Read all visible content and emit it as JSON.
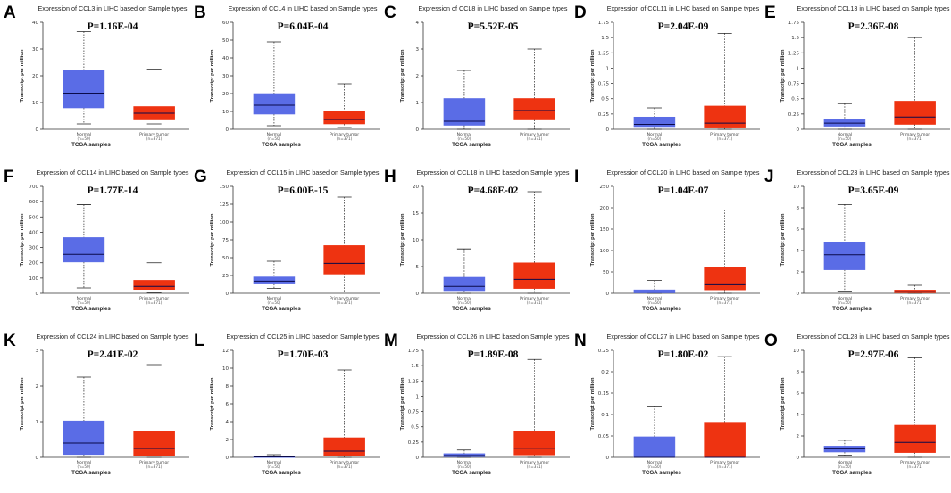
{
  "figure": {
    "colors": {
      "normal": "#5a6ce6",
      "tumor": "#ee3311",
      "median": "#0a0a4a",
      "axis": "#333333",
      "whisker": "#222222"
    }
  },
  "chart_data": [
    {
      "letter": "A",
      "type": "boxplot",
      "title": "Expression of CCL3 in LIHC based on Sample types",
      "pvalue": "P=1.16E-04",
      "ylabel": "Transcript per million",
      "xlabel": "TCGA samples",
      "ylim": [
        0,
        40
      ],
      "yticks": [
        0,
        10,
        20,
        30,
        40
      ],
      "ytick_labels": [
        "0",
        "10",
        "20",
        "30",
        "40"
      ],
      "categories": [
        {
          "name": "Normal",
          "n": "(n=50)"
        },
        {
          "name": "Primary tumor",
          "n": "(n=371)"
        }
      ],
      "boxes": [
        {
          "min": 2,
          "q1": 8,
          "median": 13.5,
          "q3": 22,
          "max": 36.5
        },
        {
          "min": 2,
          "q1": 3.5,
          "median": 6,
          "q3": 8.5,
          "max": 22.5
        }
      ]
    },
    {
      "letter": "B",
      "type": "boxplot",
      "title": "Expression of CCL4 in LIHC based on Sample types",
      "pvalue": "P=6.04E-04",
      "ylabel": "Transcript per million",
      "xlabel": "TCGA samples",
      "ylim": [
        0,
        60
      ],
      "yticks": [
        0,
        10,
        20,
        30,
        40,
        50,
        60
      ],
      "ytick_labels": [
        "0",
        "10",
        "20",
        "30",
        "40",
        "50",
        "60"
      ],
      "categories": [
        {
          "name": "Normal",
          "n": "(n=50)"
        },
        {
          "name": "Primary tumor",
          "n": "(n=371)"
        }
      ],
      "boxes": [
        {
          "min": 2,
          "q1": 8.5,
          "median": 13.5,
          "q3": 20,
          "max": 49
        },
        {
          "min": 1,
          "q1": 3,
          "median": 5.5,
          "q3": 10,
          "max": 25.5
        }
      ]
    },
    {
      "letter": "C",
      "type": "boxplot",
      "title": "Expression of CCL8 in LIHC based on Sample types",
      "pvalue": "P=5.52E-05",
      "ylabel": "Transcript per million",
      "xlabel": "TCGA samples",
      "ylim": [
        0,
        4
      ],
      "yticks": [
        0,
        1,
        2,
        3,
        4
      ],
      "ytick_labels": [
        "0",
        "1",
        "2",
        "3",
        "4"
      ],
      "categories": [
        {
          "name": "Normal",
          "n": "(n=50)"
        },
        {
          "name": "Primary tumor",
          "n": "(n=371)"
        }
      ],
      "boxes": [
        {
          "min": 0,
          "q1": 0.15,
          "median": 0.3,
          "q3": 1.15,
          "max": 2.2
        },
        {
          "min": 0,
          "q1": 0.35,
          "median": 0.7,
          "q3": 1.15,
          "max": 3
        }
      ]
    },
    {
      "letter": "D",
      "type": "boxplot",
      "title": "Expression of CCL11 in LIHC based on Sample types",
      "pvalue": "P=2.04E-09",
      "ylabel": "Transcript per million",
      "xlabel": "TCGA samples",
      "ylim": [
        0,
        1.75
      ],
      "yticks": [
        0,
        0.25,
        0.5,
        0.75,
        1,
        1.25,
        1.5,
        1.75
      ],
      "ytick_labels": [
        "0",
        "0.25",
        "0.5",
        "0.75",
        "1",
        "1.25",
        "1.5",
        "1.75"
      ],
      "categories": [
        {
          "name": "Normal",
          "n": "(n=50)"
        },
        {
          "name": "Primary tumor",
          "n": "(n=371)"
        }
      ],
      "boxes": [
        {
          "min": 0,
          "q1": 0.03,
          "median": 0.08,
          "q3": 0.2,
          "max": 0.35
        },
        {
          "min": 0,
          "q1": 0.02,
          "median": 0.1,
          "q3": 0.38,
          "max": 1.57
        }
      ]
    },
    {
      "letter": "E",
      "type": "boxplot",
      "title": "Expression of CCL13 in LIHC based on Sample types",
      "pvalue": "P=2.36E-08",
      "ylabel": "Transcript per million",
      "xlabel": "TCGA samples",
      "ylim": [
        0,
        1.75
      ],
      "yticks": [
        0,
        0.25,
        0.5,
        0.75,
        1,
        1.25,
        1.5,
        1.75
      ],
      "ytick_labels": [
        "0",
        "0.25",
        "0.5",
        "0.75",
        "1",
        "1.25",
        "1.5",
        "1.75"
      ],
      "categories": [
        {
          "name": "Normal",
          "n": "(n=50)"
        },
        {
          "name": "Primary tumor",
          "n": "(n=371)"
        }
      ],
      "boxes": [
        {
          "min": 0,
          "q1": 0.05,
          "median": 0.1,
          "q3": 0.17,
          "max": 0.42
        },
        {
          "min": 0,
          "q1": 0.08,
          "median": 0.2,
          "q3": 0.46,
          "max": 1.5
        }
      ]
    },
    {
      "letter": "F",
      "type": "boxplot",
      "title": "Expression of CCL14 in LIHC based on Sample types",
      "pvalue": "P=1.77E-14",
      "ylabel": "Transcript per million",
      "xlabel": "TCGA samples",
      "ylim": [
        0,
        700
      ],
      "yticks": [
        0,
        100,
        200,
        300,
        400,
        500,
        600,
        700
      ],
      "ytick_labels": [
        "0",
        "100",
        "200",
        "300",
        "400",
        "500",
        "600",
        "700"
      ],
      "categories": [
        {
          "name": "Normal",
          "n": "(n=50)"
        },
        {
          "name": "Primary tumor",
          "n": "(n=371)"
        }
      ],
      "boxes": [
        {
          "min": 35,
          "q1": 205,
          "median": 255,
          "q3": 365,
          "max": 580
        },
        {
          "min": 5,
          "q1": 25,
          "median": 45,
          "q3": 85,
          "max": 200
        }
      ]
    },
    {
      "letter": "G",
      "type": "boxplot",
      "title": "Expression of CCL15 in LIHC based on Sample types",
      "pvalue": "P=6.00E-15",
      "ylabel": "Transcript per million",
      "xlabel": "TCGA samples",
      "ylim": [
        0,
        150
      ],
      "yticks": [
        0,
        25,
        50,
        75,
        100,
        125,
        150
      ],
      "ytick_labels": [
        "0",
        "25",
        "50",
        "75",
        "100",
        "125",
        "150"
      ],
      "categories": [
        {
          "name": "Normal",
          "n": "(n=50)"
        },
        {
          "name": "Primary tumor",
          "n": "(n=371)"
        }
      ],
      "boxes": [
        {
          "min": 7,
          "q1": 13,
          "median": 17,
          "q3": 23,
          "max": 45
        },
        {
          "min": 2,
          "q1": 27,
          "median": 42,
          "q3": 67,
          "max": 135
        }
      ]
    },
    {
      "letter": "H",
      "type": "boxplot",
      "title": "Expression of CCL18 in LIHC based on Sample types",
      "pvalue": "P=4.68E-02",
      "ylabel": "Transcript per million",
      "xlabel": "TCGA samples",
      "ylim": [
        0,
        20
      ],
      "yticks": [
        0,
        5,
        10,
        15,
        20
      ],
      "ytick_labels": [
        "0",
        "5",
        "10",
        "15",
        "20"
      ],
      "categories": [
        {
          "name": "Normal",
          "n": "(n=50)"
        },
        {
          "name": "Primary tumor",
          "n": "(n=371)"
        }
      ],
      "boxes": [
        {
          "min": 0,
          "q1": 0.5,
          "median": 1.3,
          "q3": 3,
          "max": 8.3
        },
        {
          "min": 0,
          "q1": 0.9,
          "median": 2.6,
          "q3": 5.7,
          "max": 19
        }
      ]
    },
    {
      "letter": "I",
      "type": "boxplot",
      "title": "Expression of CCL20 in LIHC based on Sample types",
      "pvalue": "P=1.04E-07",
      "ylabel": "Transcript per million",
      "xlabel": "TCGA samples",
      "ylim": [
        0,
        250
      ],
      "yticks": [
        0,
        50,
        100,
        150,
        200,
        250
      ],
      "ytick_labels": [
        "0",
        "50",
        "100",
        "150",
        "200",
        "250"
      ],
      "categories": [
        {
          "name": "Normal",
          "n": "(n=50)"
        },
        {
          "name": "Primary tumor",
          "n": "(n=371)"
        }
      ],
      "boxes": [
        {
          "min": 0,
          "q1": 1,
          "median": 3,
          "q3": 8,
          "max": 30
        },
        {
          "min": 0,
          "q1": 8,
          "median": 20,
          "q3": 60,
          "max": 195
        }
      ]
    },
    {
      "letter": "J",
      "type": "boxplot",
      "title": "Expression of CCL23 in LIHC based on Sample types",
      "pvalue": "P=3.65E-09",
      "ylabel": "Transcript per million",
      "xlabel": "TCGA samples",
      "ylim": [
        0,
        10
      ],
      "yticks": [
        0,
        2,
        4,
        6,
        8,
        10
      ],
      "ytick_labels": [
        "0",
        "2",
        "4",
        "6",
        "8",
        "10"
      ],
      "categories": [
        {
          "name": "Normal",
          "n": "(n=50)"
        },
        {
          "name": "Primary tumor",
          "n": "(n=371)"
        }
      ],
      "boxes": [
        {
          "min": 0.2,
          "q1": 2.2,
          "median": 3.6,
          "q3": 4.8,
          "max": 8.3
        },
        {
          "min": 0,
          "q1": 0.05,
          "median": 0.15,
          "q3": 0.3,
          "max": 0.75
        }
      ]
    },
    {
      "letter": "K",
      "type": "boxplot",
      "title": "Expression of CCL24 in LIHC based on Sample types",
      "pvalue": "P=2.41E-02",
      "ylabel": "Transcript per million",
      "xlabel": "TCGA samples",
      "ylim": [
        0,
        3
      ],
      "yticks": [
        0,
        1,
        2,
        3
      ],
      "ytick_labels": [
        "0",
        "1",
        "2",
        "3"
      ],
      "categories": [
        {
          "name": "Normal",
          "n": "(n=50)"
        },
        {
          "name": "Primary tumor",
          "n": "(n=371)"
        }
      ],
      "boxes": [
        {
          "min": 0,
          "q1": 0.08,
          "median": 0.4,
          "q3": 1.02,
          "max": 2.25
        },
        {
          "min": 0,
          "q1": 0.05,
          "median": 0.25,
          "q3": 0.72,
          "max": 2.6
        }
      ]
    },
    {
      "letter": "L",
      "type": "boxplot",
      "title": "Expression of CCL25 in LIHC based on Sample types",
      "pvalue": "P=1.70E-03",
      "ylabel": "Transcript per million",
      "xlabel": "TCGA samples",
      "ylim": [
        0,
        12
      ],
      "yticks": [
        0,
        2,
        4,
        6,
        8,
        10,
        12
      ],
      "ytick_labels": [
        "0",
        "2",
        "4",
        "6",
        "8",
        "10",
        "12"
      ],
      "categories": [
        {
          "name": "Normal",
          "n": "(n=50)"
        },
        {
          "name": "Primary tumor",
          "n": "(n=371)"
        }
      ],
      "boxes": [
        {
          "min": 0,
          "q1": 0.02,
          "median": 0.05,
          "q3": 0.1,
          "max": 0.3
        },
        {
          "min": 0,
          "q1": 0.2,
          "median": 0.7,
          "q3": 2.2,
          "max": 9.8
        }
      ]
    },
    {
      "letter": "M",
      "type": "boxplot",
      "title": "Expression of CCL26 in LIHC based on Sample types",
      "pvalue": "P=1.89E-08",
      "ylabel": "Transcript per million",
      "xlabel": "TCGA samples",
      "ylim": [
        0,
        1.75
      ],
      "yticks": [
        0,
        0.25,
        0.5,
        0.75,
        1,
        1.25,
        1.5,
        1.75
      ],
      "ytick_labels": [
        "0",
        "0.25",
        "0.5",
        "0.75",
        "1",
        "1.25",
        "1.5",
        "1.75"
      ],
      "categories": [
        {
          "name": "Normal",
          "n": "(n=50)"
        },
        {
          "name": "Primary tumor",
          "n": "(n=371)"
        }
      ],
      "boxes": [
        {
          "min": 0,
          "q1": 0.01,
          "median": 0.03,
          "q3": 0.06,
          "max": 0.12
        },
        {
          "min": 0,
          "q1": 0.04,
          "median": 0.15,
          "q3": 0.42,
          "max": 1.6
        }
      ]
    },
    {
      "letter": "N",
      "type": "boxplot",
      "title": "Expression of CCL27 in LIHC based on Sample types",
      "pvalue": "P=1.80E-02",
      "ylabel": "Transcript per million",
      "xlabel": "TCGA samples",
      "ylim": [
        0,
        0.25
      ],
      "yticks": [
        0,
        0.05,
        0.1,
        0.15,
        0.2,
        0.25
      ],
      "ytick_labels": [
        "0",
        "0.05",
        "0.1",
        "0.15",
        "0.2",
        "0.25"
      ],
      "categories": [
        {
          "name": "Normal",
          "n": "(n=50)"
        },
        {
          "name": "Primary tumor",
          "n": "(n=371)"
        }
      ],
      "boxes": [
        {
          "min": 0,
          "q1": 0,
          "median": 0,
          "q3": 0.048,
          "max": 0.12
        },
        {
          "min": 0,
          "q1": 0,
          "median": 0,
          "q3": 0.082,
          "max": 0.235
        }
      ]
    },
    {
      "letter": "O",
      "type": "boxplot",
      "title": "Expression of CCL28 in LIHC based on Sample types",
      "pvalue": "P=2.97E-06",
      "ylabel": "Transcript per million",
      "xlabel": "TCGA samples",
      "ylim": [
        0,
        10
      ],
      "yticks": [
        0,
        2,
        4,
        6,
        8,
        10
      ],
      "ytick_labels": [
        "0",
        "2",
        "4",
        "6",
        "8",
        "10"
      ],
      "categories": [
        {
          "name": "Normal",
          "n": "(n=50)"
        },
        {
          "name": "Primary tumor",
          "n": "(n=371)"
        }
      ],
      "boxes": [
        {
          "min": 0.2,
          "q1": 0.5,
          "median": 0.8,
          "q3": 1.05,
          "max": 1.6
        },
        {
          "min": 0,
          "q1": 0.45,
          "median": 1.4,
          "q3": 3,
          "max": 9.3
        }
      ]
    }
  ]
}
